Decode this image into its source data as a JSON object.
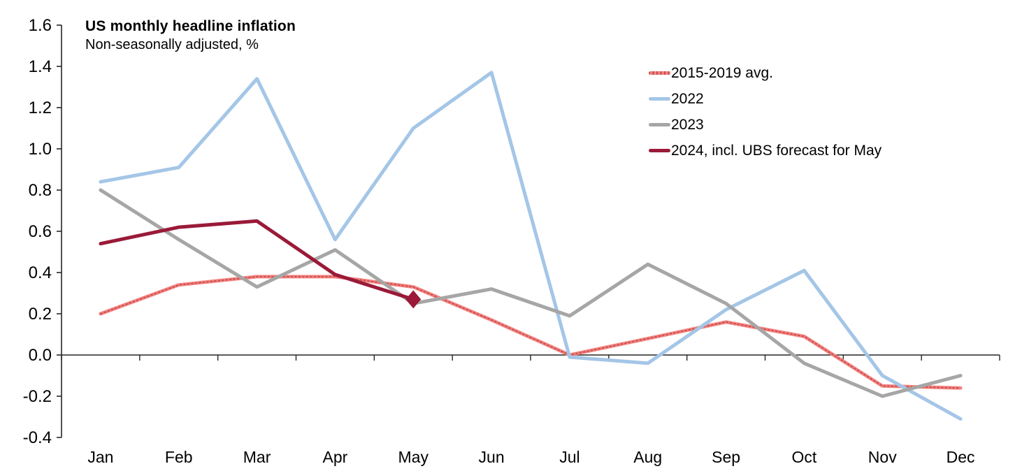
{
  "header": {
    "title": "US monthly headline inflation",
    "subtitle": "Non-seasonally adjusted, %"
  },
  "chart_data": {
    "type": "line",
    "title": "US monthly headline inflation",
    "subtitle": "Non-seasonally adjusted, %",
    "x": [
      "Jan",
      "Feb",
      "Mar",
      "Apr",
      "May",
      "Jun",
      "Jul",
      "Aug",
      "Sep",
      "Oct",
      "Nov",
      "Dec"
    ],
    "series": [
      {
        "name": "2015-2019 avg.",
        "color": "#F58280",
        "dash_color": "#C0504D",
        "line_style": "dash-textured",
        "values": [
          0.2,
          0.34,
          0.38,
          0.38,
          0.33,
          0.17,
          0.0,
          0.08,
          0.16,
          0.09,
          -0.15,
          -0.16
        ]
      },
      {
        "name": "2022",
        "color": "#A4C6E7",
        "line_style": "solid",
        "values": [
          0.84,
          0.91,
          1.34,
          0.56,
          1.1,
          1.37,
          -0.01,
          -0.04,
          0.22,
          0.41,
          -0.1,
          -0.31
        ]
      },
      {
        "name": "2023",
        "color": "#A6A6A6",
        "line_style": "solid",
        "values": [
          0.8,
          0.56,
          0.33,
          0.51,
          0.25,
          0.32,
          0.19,
          0.44,
          0.25,
          -0.04,
          -0.2,
          -0.1
        ]
      },
      {
        "name": "2024, incl. UBS forecast for May",
        "color": "#9A1A38",
        "line_style": "solid",
        "values": [
          0.54,
          0.62,
          0.65,
          0.39,
          0.27,
          null,
          null,
          null,
          null,
          null,
          null,
          null
        ],
        "marker": {
          "type": "diamond",
          "x": "May",
          "value": 0.27
        }
      }
    ],
    "ylim": [
      -0.4,
      1.6
    ],
    "ytick_step": 0.2,
    "ytick_labels": [
      "-0.4",
      "-0.2",
      "0.0",
      "0.2",
      "0.4",
      "0.6",
      "0.8",
      "1.0",
      "1.2",
      "1.4",
      "1.6"
    ],
    "grid": false,
    "legend_position": "top-right",
    "axis_color": "#262626"
  }
}
